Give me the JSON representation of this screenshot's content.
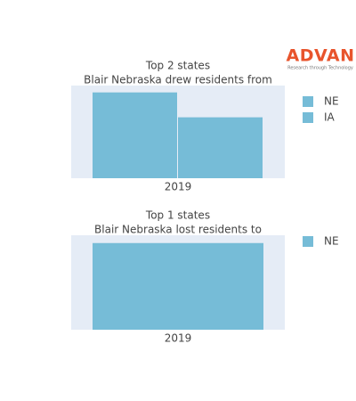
{
  "logo": {
    "name": "ADVAN",
    "tagline": "Research through Technology"
  },
  "chart_data": [
    {
      "type": "bar",
      "title": "Top 2 states",
      "subtitle": "Blair Nebraska drew residents from",
      "categories": [
        "2019"
      ],
      "series": [
        {
          "name": "NE",
          "color": "#76bcd7",
          "values": [
            100
          ]
        },
        {
          "name": "IA",
          "color": "#76bcd7",
          "values": [
            71
          ]
        }
      ],
      "ylim": [
        0,
        108
      ]
    },
    {
      "type": "bar",
      "title": "Top 1 states",
      "subtitle": "Blair Nebraska lost residents to",
      "categories": [
        "2019"
      ],
      "series": [
        {
          "name": "NE",
          "color": "#76bcd7",
          "values": [
            100
          ]
        }
      ],
      "ylim": [
        0,
        109
      ]
    }
  ]
}
